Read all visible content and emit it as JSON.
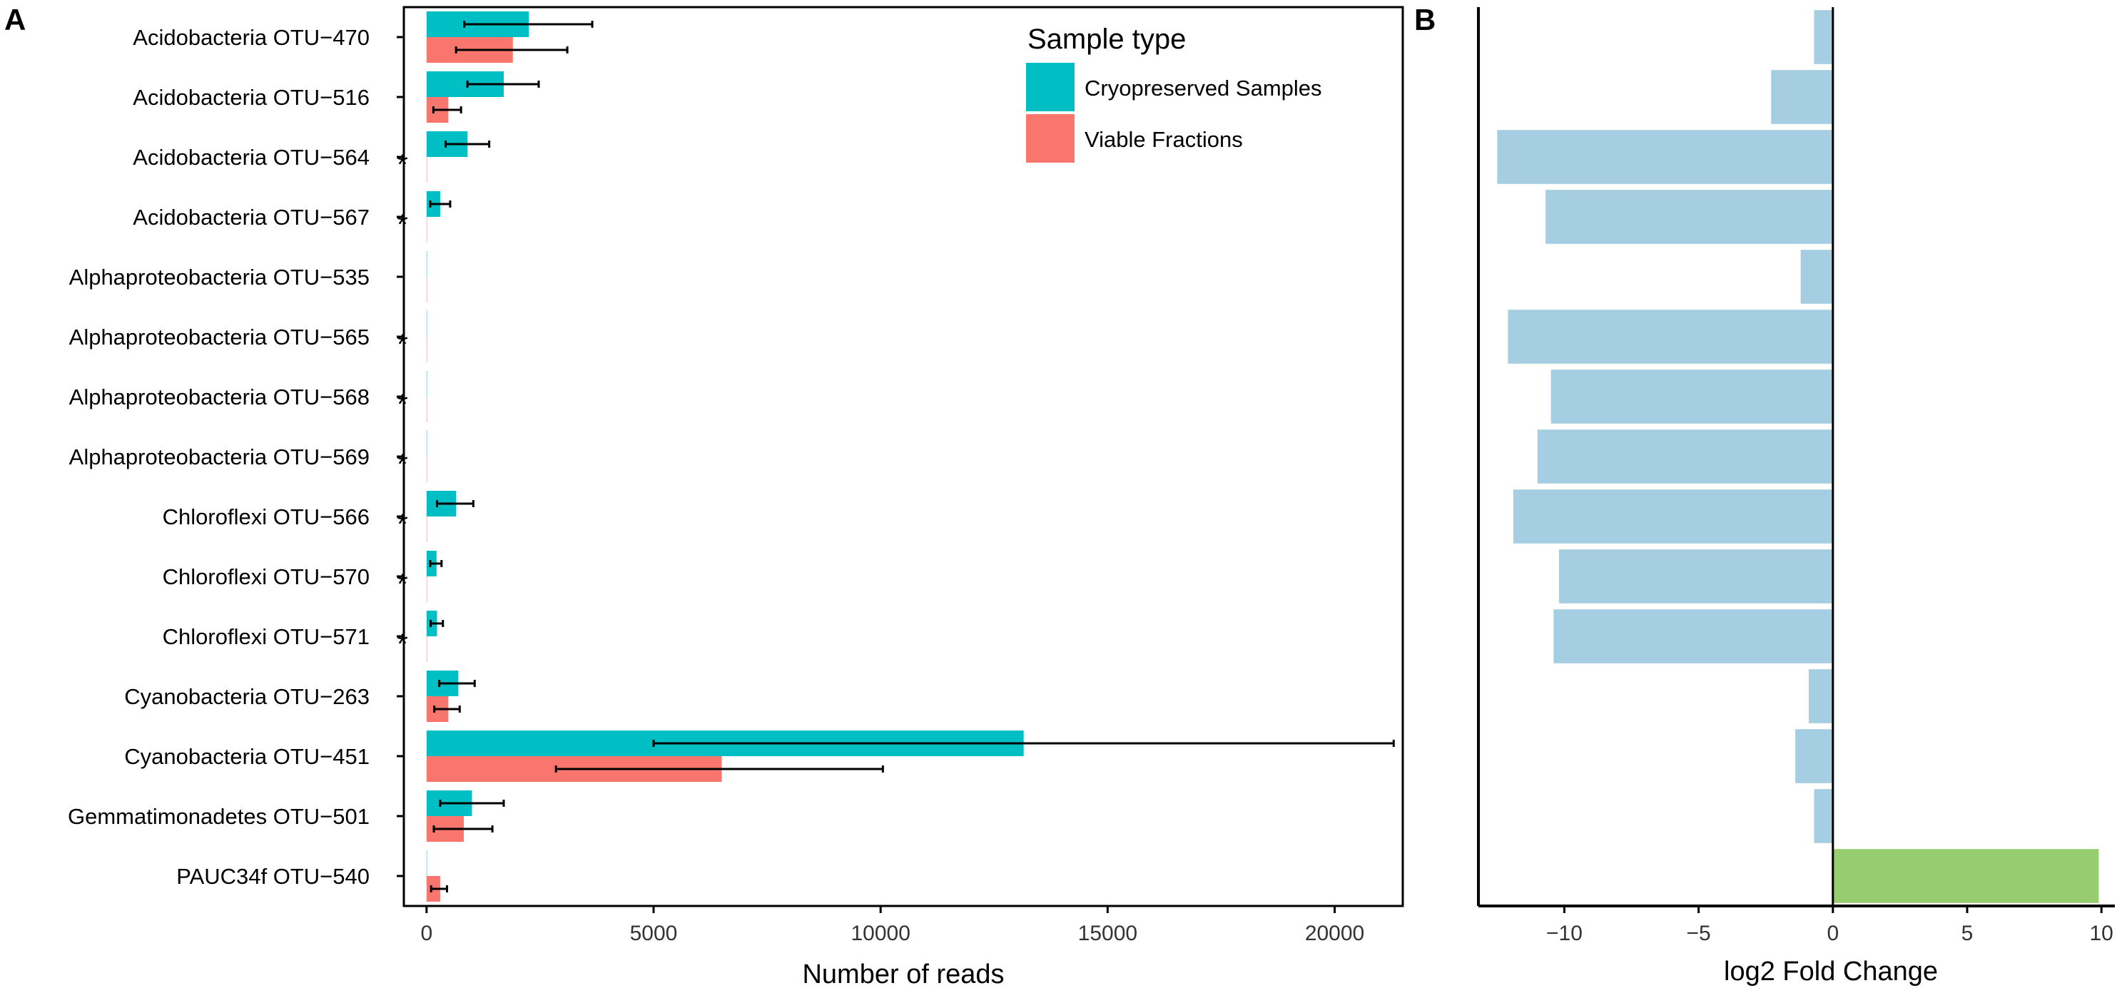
{
  "chart_data": [
    {
      "panel": "A",
      "type": "bar",
      "orientation": "horizontal",
      "xlabel": "Number of reads",
      "ylabel": "",
      "xlim": [
        -500,
        21500
      ],
      "xticks": [
        0,
        5000,
        10000,
        15000,
        20000
      ],
      "grid": false,
      "legend_title": "Sample type",
      "legend_position": "top-right",
      "categories": [
        "Acidobacteria OTU−470",
        "Acidobacteria OTU−516",
        "Acidobacteria OTU−564",
        "Acidobacteria OTU−567",
        "Alphaproteobacteria OTU−535",
        "Alphaproteobacteria OTU−565",
        "Alphaproteobacteria OTU−568",
        "Alphaproteobacteria OTU−569",
        "Chloroflexi OTU−566",
        "Chloroflexi OTU−570",
        "Chloroflexi OTU−571",
        "Cyanobacteria OTU−263",
        "Cyanobacteria OTU−451",
        "Gemmatimonadetes OTU−501",
        "PAUC34f OTU−540"
      ],
      "significance": [
        "",
        "",
        "*",
        "*",
        "",
        "*",
        "*",
        "*",
        "*",
        "*",
        "*",
        "",
        "",
        "",
        ""
      ],
      "series": [
        {
          "name": "Cryopreserved Samples",
          "color": "#00BFC4",
          "values": [
            2250,
            1700,
            900,
            300,
            0,
            0,
            0,
            0,
            650,
            220,
            230,
            700,
            13150,
            1000,
            0
          ],
          "err_low": [
            830,
            900,
            420,
            80,
            0,
            0,
            0,
            0,
            230,
            80,
            90,
            280,
            5000,
            300,
            0
          ],
          "err_high": [
            3650,
            2470,
            1380,
            520,
            0,
            0,
            0,
            0,
            1030,
            330,
            360,
            1060,
            21300,
            1700,
            0
          ]
        },
        {
          "name": "Viable Fractions",
          "color": "#F8766D",
          "values": [
            1900,
            480,
            0,
            0,
            0,
            0,
            0,
            0,
            0,
            0,
            0,
            480,
            6500,
            820,
            300
          ],
          "err_low": [
            650,
            150,
            0,
            0,
            0,
            0,
            0,
            0,
            0,
            0,
            0,
            170,
            2850,
            160,
            100
          ],
          "err_high": [
            3100,
            760,
            0,
            0,
            0,
            0,
            0,
            0,
            0,
            0,
            0,
            730,
            10050,
            1450,
            450
          ]
        }
      ]
    },
    {
      "panel": "B",
      "type": "bar",
      "orientation": "horizontal",
      "xlabel": "log2 Fold Change",
      "ylabel": "",
      "xlim": [
        -13.2,
        10.5
      ],
      "xticks": [
        -10,
        -5,
        0,
        5,
        10
      ],
      "xtick_labels": [
        "−10",
        "−5",
        "0",
        "5",
        "10"
      ],
      "grid": false,
      "values": [
        -0.7,
        -2.3,
        -12.5,
        -10.7,
        -1.2,
        -12.1,
        -10.5,
        -11.0,
        -11.9,
        -10.2,
        -10.4,
        -0.9,
        -1.4,
        -0.7,
        9.9
      ],
      "colors": [
        "#A6CEE3",
        "#A6CEE3",
        "#A6CEE3",
        "#A6CEE3",
        "#A6CEE3",
        "#A6CEE3",
        "#A6CEE3",
        "#A6CEE3",
        "#A6CEE3",
        "#A6CEE3",
        "#A6CEE3",
        "#A6CEE3",
        "#A6CEE3",
        "#A6CEE3",
        "#96CD6E"
      ]
    }
  ],
  "panel_labels": {
    "a": "A",
    "b": "B"
  }
}
